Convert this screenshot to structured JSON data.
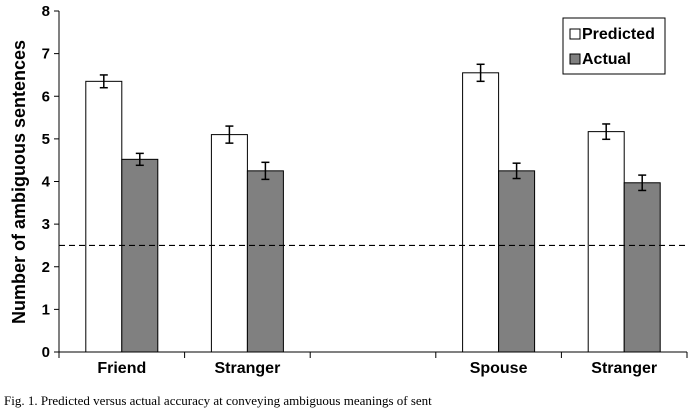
{
  "chart_data": {
    "type": "bar",
    "ylabel": "Number of ambiguous sentences",
    "ylim": [
      0,
      8
    ],
    "yticks": [
      "0",
      "1",
      "2",
      "3",
      "4",
      "5",
      "6",
      "7",
      "8"
    ],
    "categories": [
      "Friend",
      "Stranger",
      "",
      "Spouse",
      "Stranger"
    ],
    "series": [
      {
        "name": "Predicted",
        "values": [
          6.35,
          5.1,
          null,
          6.55,
          5.17
        ],
        "errors": [
          0.15,
          0.2,
          null,
          0.2,
          0.18
        ],
        "color": "#ffffff"
      },
      {
        "name": "Actual",
        "values": [
          4.52,
          4.25,
          null,
          4.25,
          3.97
        ],
        "errors": [
          0.14,
          0.2,
          null,
          0.18,
          0.18
        ],
        "color": "#808080"
      }
    ],
    "reference_line": {
      "y": 2.5,
      "style": "dashed"
    },
    "legend_position": "top-right",
    "grid": false
  },
  "caption": "Fig. 1. Predicted versus actual accuracy at conveying ambiguous meanings of sent"
}
